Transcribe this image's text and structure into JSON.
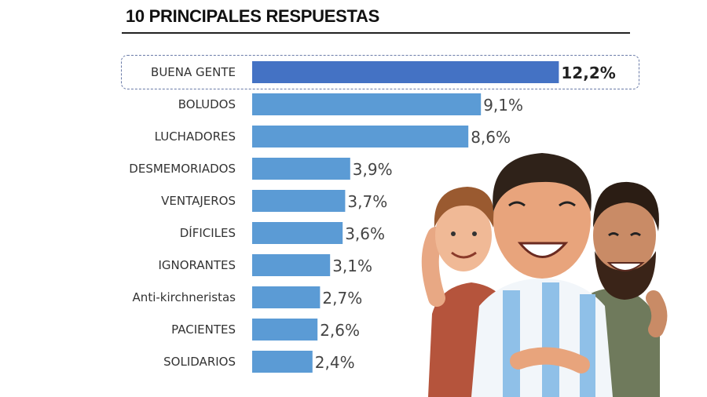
{
  "chart_data": {
    "type": "bar",
    "orientation": "horizontal",
    "title": "10 PRINCIPALES RESPUESTAS",
    "categories": [
      "BUENA GENTE",
      "BOLUDOS",
      "LUCHADORES",
      "DESMEMORIADOS",
      "VENTAJEROS",
      "DÍFICILES",
      "IGNORANTES",
      "Anti-kirchneristas",
      "PACIENTES",
      "SOLIDARIOS"
    ],
    "values": [
      12.2,
      9.1,
      8.6,
      3.9,
      3.7,
      3.6,
      3.1,
      2.7,
      2.6,
      2.4
    ],
    "value_labels": [
      "12,2%",
      "9,1%",
      "8,6%",
      "3,9%",
      "3,7%",
      "3,6%",
      "3,1%",
      "2,7%",
      "2,6%",
      "2,4%"
    ],
    "highlighted": "BUENA GENTE",
    "colors": {
      "highlight": "#4472c4",
      "bar": "#5b9bd5"
    },
    "grid": false,
    "legend": "none"
  },
  "illustration": "three-hugging-men"
}
